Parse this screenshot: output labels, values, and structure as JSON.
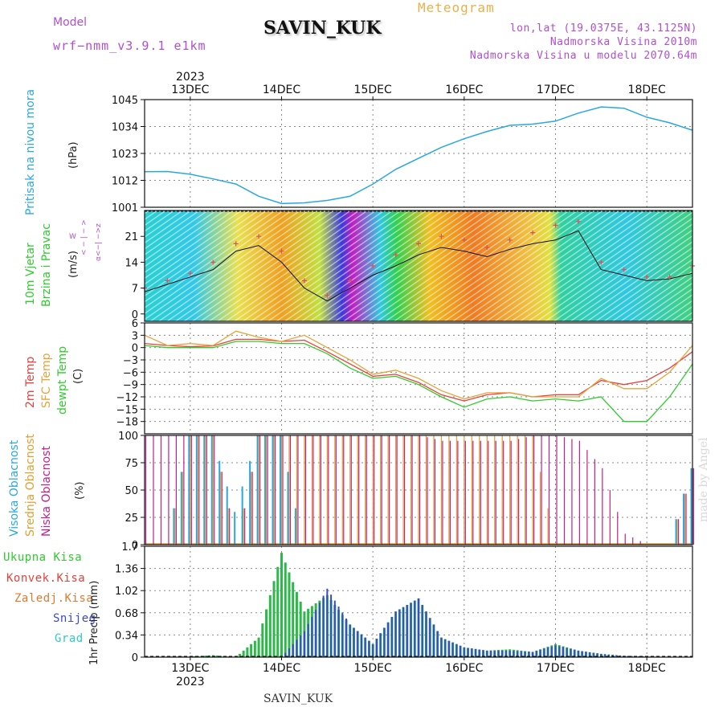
{
  "header": {
    "title": "SAVIN_KUK",
    "meteogram": "Meteogram",
    "model_label": "Model",
    "model_name": "wrf−nmm_v3.9.1  e1km",
    "info_lines": [
      "lon,lat (19.0375E, 43.1125N)",
      "Nadmorska Visina 2010m",
      "Nadmorska Visina u modelu 2070.64m"
    ]
  },
  "footer": "SAVIN_KUK",
  "watermark": "made by Angel",
  "axis_time": {
    "year": "2023",
    "days": [
      "13DEC",
      "14DEC",
      "15DEC",
      "16DEC",
      "17DEC",
      "18DEC"
    ]
  },
  "colors": {
    "pressure": "#29a8e0",
    "temp2m": "#e8403c",
    "sfc_temp": "#e8a23a",
    "dewpoint": "#2ecc2e",
    "cloud_high": "#29a8e0",
    "cloud_mid": "#e0a030",
    "cloud_low": "#c0208a",
    "precip_total": "#2db84a",
    "precip_conv": "#e8403c",
    "precip_frozen": "#e07a30",
    "precip_snow": "#3a4ad0",
    "precip_grad": "#2ecbc0",
    "wind_speed": "#111111",
    "wind_gust": "#e05050"
  },
  "panel_labels": {
    "pressure": {
      "name": "Pritisak na nivou mora",
      "unit": "(hPa)"
    },
    "wind": {
      "name1": "10m Vjetar",
      "name2": "Brzina i Pravac",
      "unit": "(m/s)",
      "compass_w": "W",
      "compass_z": "Z",
      "compass_axis": "< − | − >",
      "compass_alpha": "α<−| −>z"
    },
    "temp": {
      "name1": "2m Temp",
      "name2": "SFC Temp",
      "name3": "dewpt Temp",
      "unit": "(C)"
    },
    "cloud": {
      "name1": "Visoka Oblacnost",
      "name2": "Srednja Oblacnost",
      "name3": "Niska Oblacnost",
      "unit": "(%)"
    },
    "precip": {
      "unit": "1hr Precip (mm)",
      "legend": [
        "Ukupna Kisa",
        "Konvek.Kisa",
        "Zaledj.Kisa",
        "Snijeg",
        "Grad"
      ]
    }
  },
  "chart_data": [
    {
      "type": "line",
      "title": "",
      "ylabel": "Pritisak na nivou mora (hPa)",
      "yticks": [
        "1001",
        "1012",
        "1023",
        "1034",
        "1045"
      ],
      "ylim": [
        1001,
        1045
      ],
      "x_hours": [
        0,
        6,
        12,
        18,
        24,
        30,
        36,
        42,
        48,
        54,
        60,
        66,
        72,
        78,
        84,
        90,
        96,
        102,
        108,
        114,
        120,
        126,
        132,
        138,
        144
      ],
      "series": [
        {
          "name": "",
          "values": [
            1015.5,
            1015.6,
            1014.5,
            1012.6,
            1010.5,
            1005.5,
            1002.5,
            1002.8,
            1003.8,
            1005.5,
            1010.5,
            1016.5,
            1021.0,
            1025.5,
            1029.0,
            1032.0,
            1034.5,
            1035.0,
            1036.2,
            1039.5,
            1042.0,
            1041.5,
            1037.8,
            1035.5,
            1032.5
          ]
        }
      ],
      "grid": true
    },
    {
      "type": "line",
      "title": "",
      "ylabel": "10m Vjetar Brzina i Pravac (m/s)",
      "yticks": [
        "0",
        "7",
        "14",
        "21"
      ],
      "ylim": [
        -2,
        28
      ],
      "x_hours": [
        0,
        6,
        12,
        18,
        24,
        30,
        36,
        42,
        48,
        54,
        60,
        66,
        72,
        78,
        84,
        90,
        96,
        102,
        108,
        114,
        120,
        126,
        132,
        138,
        144
      ],
      "series": [
        {
          "name": "",
          "values": [
            6,
            8,
            10,
            12,
            17,
            18.5,
            14,
            7,
            3.5,
            7,
            10.5,
            13,
            16,
            18,
            17,
            15.5,
            17.5,
            19,
            20,
            22.5,
            12,
            10.5,
            9,
            9.5,
            11
          ]
        },
        {
          "name": "",
          "values": [
            7,
            9,
            11,
            14,
            19,
            21,
            17,
            9,
            5,
            9,
            13,
            16,
            19,
            21,
            20,
            18,
            20,
            22,
            24,
            25,
            14,
            12,
            10,
            10,
            13
          ]
        }
      ],
      "grid": true
    },
    {
      "type": "line",
      "title": "",
      "ylabel": "2m Temp / SFC Temp / dewpt Temp (C)",
      "yticks": [
        "6",
        "3",
        "0",
        "−3",
        "−6",
        "−9",
        "−12",
        "−15",
        "−18"
      ],
      "ylim": [
        -21,
        6
      ],
      "x_hours": [
        0,
        6,
        12,
        18,
        24,
        30,
        36,
        42,
        48,
        54,
        60,
        66,
        72,
        78,
        84,
        90,
        96,
        102,
        108,
        114,
        120,
        126,
        132,
        138,
        144
      ],
      "series": [
        {
          "name": "2m Temp",
          "values": [
            1,
            0.5,
            0.2,
            0.4,
            2,
            2,
            1.5,
            1.8,
            -1,
            -4,
            -7,
            -6.5,
            -8.5,
            -11.5,
            -13,
            -11.5,
            -11,
            -12,
            -11.5,
            -11.5,
            -8,
            -9,
            -8,
            -5,
            -1
          ]
        },
        {
          "name": "SFC Temp",
          "values": [
            3,
            0.5,
            1,
            0.5,
            4,
            2.5,
            1.5,
            3,
            0,
            -3,
            -6.5,
            -5.5,
            -7.5,
            -10.5,
            -12.5,
            -11,
            -11,
            -12,
            -12,
            -12,
            -7.5,
            -10,
            -10,
            -6,
            0.5
          ]
        },
        {
          "name": "dewpt Temp",
          "values": [
            0.5,
            0,
            0,
            0,
            1.5,
            1.5,
            1,
            1,
            -1.5,
            -5,
            -7.5,
            -7,
            -9,
            -12,
            -14.5,
            -12.5,
            -12,
            -13,
            -12.5,
            -13,
            -12,
            -18,
            -18,
            -12,
            -4
          ]
        }
      ],
      "grid": true
    },
    {
      "type": "bar",
      "title": "",
      "ylabel": "Visoka / Srednja / Niska Oblacnost (%)",
      "yticks": [
        "0",
        "25",
        "50",
        "75",
        "100"
      ],
      "ylim": [
        0,
        100
      ],
      "x_hours": [
        0,
        6,
        12,
        18,
        24,
        30,
        36,
        42,
        48,
        54,
        60,
        66,
        72,
        78,
        84,
        90,
        96,
        102,
        108,
        114,
        120,
        126,
        132,
        138,
        144
      ],
      "series": [
        {
          "name": "Visoka Oblacnost",
          "values": [
            0,
            0,
            100,
            100,
            30,
            100,
            100,
            0,
            0,
            0,
            0,
            0,
            0,
            0,
            0,
            0,
            0,
            0,
            0,
            0,
            0,
            0,
            0,
            0,
            70
          ]
        },
        {
          "name": "Srednja Oblacnost",
          "values": [
            0,
            0,
            100,
            100,
            0,
            100,
            100,
            100,
            100,
            100,
            100,
            100,
            100,
            100,
            100,
            100,
            100,
            100,
            0,
            0,
            0,
            0,
            0,
            0,
            70
          ]
        },
        {
          "name": "Niska Oblacnost",
          "values": [
            100,
            100,
            100,
            100,
            0,
            100,
            100,
            100,
            100,
            100,
            100,
            100,
            100,
            95,
            95,
            95,
            95,
            100,
            100,
            95,
            70,
            10,
            0,
            0,
            70
          ]
        }
      ],
      "grid": true
    },
    {
      "type": "bar",
      "title": "",
      "ylabel": "1hr Precip (mm)",
      "yticks": [
        "0",
        "0.34",
        "0.68",
        "1.02",
        "1.36",
        "1.7"
      ],
      "ylim": [
        0,
        1.7
      ],
      "x_hours": [
        0,
        6,
        12,
        18,
        24,
        30,
        36,
        42,
        48,
        54,
        60,
        66,
        72,
        78,
        84,
        90,
        96,
        102,
        108,
        114,
        120,
        126,
        132,
        138,
        144
      ],
      "series": [
        {
          "name": "Ukupna Kisa",
          "values": [
            0,
            0.01,
            0.01,
            0.03,
            0,
            0.3,
            1.6,
            0.7,
            0.95,
            0.5,
            0.2,
            0.7,
            0.9,
            0.3,
            0.15,
            0.1,
            0.12,
            0.08,
            0.2,
            0.1,
            0.05,
            0.02,
            0.01,
            0,
            0
          ]
        },
        {
          "name": "Snijeg",
          "values": [
            0,
            0,
            0,
            0,
            0,
            0,
            0,
            0.4,
            1.05,
            0.5,
            0.2,
            0.7,
            0.9,
            0.3,
            0.15,
            0.1,
            0.1,
            0.08,
            0.18,
            0.1,
            0.05,
            0.02,
            0.01,
            0,
            0
          ]
        }
      ],
      "grid": true
    }
  ]
}
